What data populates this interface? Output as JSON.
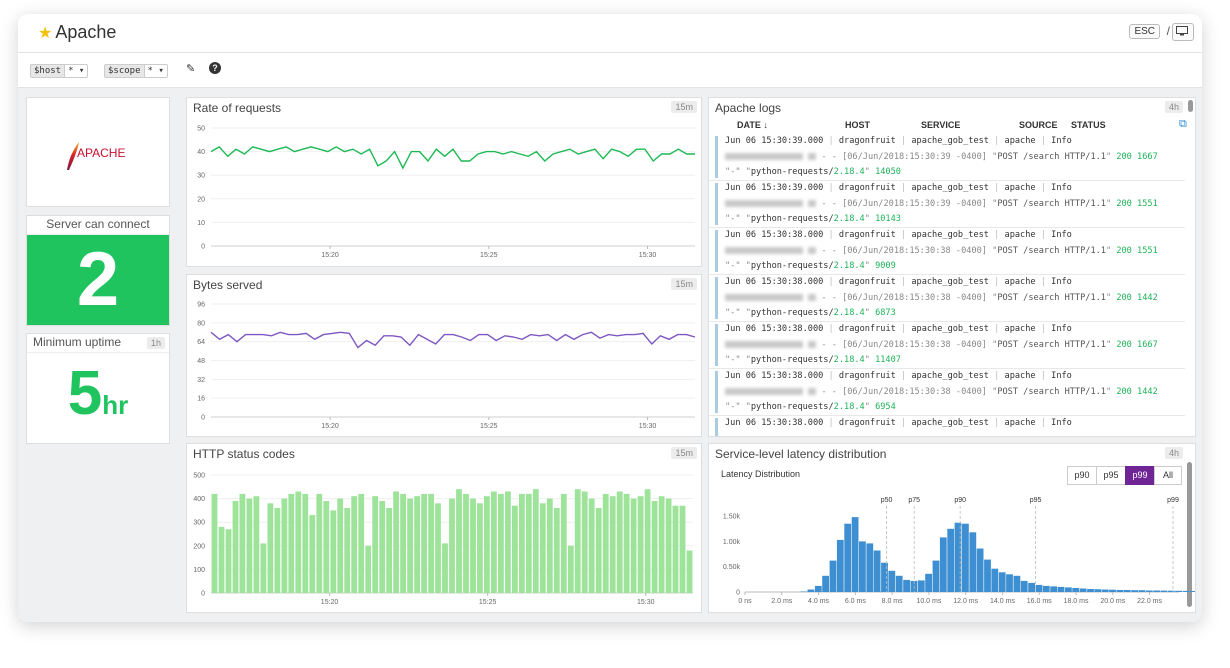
{
  "app": {
    "title": "Apache",
    "esc_label": "ESC",
    "slash": "/"
  },
  "variables": [
    {
      "name": "$host",
      "value": "*"
    },
    {
      "name": "$scope",
      "value": "*"
    }
  ],
  "widgets": {
    "logo": {
      "text": "APACHE"
    },
    "server_connect": {
      "title": "Server can connect",
      "value": "2",
      "bg_color": "#1fc45e"
    },
    "uptime": {
      "title": "Minimum uptime",
      "badge": "1h",
      "value": "5",
      "unit": "hr",
      "color": "#1fc45e"
    },
    "rate": {
      "title": "Rate of requests",
      "badge": "15m"
    },
    "bytes": {
      "title": "Bytes served",
      "badge": "15m"
    },
    "http": {
      "title": "HTTP status codes",
      "badge": "15m"
    },
    "logs": {
      "title": "Apache logs",
      "badge": "4h"
    },
    "latency": {
      "title": "Service-level latency distribution",
      "badge": "4h"
    }
  },
  "logs": {
    "columns": [
      "DATE ↓",
      "HOST",
      "SERVICE",
      "SOURCE",
      "STATUS"
    ],
    "rows": [
      {
        "date": "Jun 06 15:30:39.000",
        "host": "dragonfruit",
        "service": "apache_gob_test",
        "source": "apache",
        "status": "Info",
        "ts": "06/Jun/2018:15:30:39 -0400",
        "request": "POST /search HTTP/1.1",
        "code": "200",
        "size": "1667",
        "agent": "python-requests/",
        "ver": "2.18.4",
        "rt": "14050"
      },
      {
        "date": "Jun 06 15:30:39.000",
        "host": "dragonfruit",
        "service": "apache_gob_test",
        "source": "apache",
        "status": "Info",
        "ts": "06/Jun/2018:15:30:39 -0400",
        "request": "POST /search HTTP/1.1",
        "code": "200",
        "size": "1551",
        "agent": "python-requests/",
        "ver": "2.18.4",
        "rt": "10143"
      },
      {
        "date": "Jun 06 15:30:38.000",
        "host": "dragonfruit",
        "service": "apache_gob_test",
        "source": "apache",
        "status": "Info",
        "ts": "06/Jun/2018:15:30:38 -0400",
        "request": "POST /search HTTP/1.1",
        "code": "200",
        "size": "1551",
        "agent": "python-requests/",
        "ver": "2.18.4",
        "rt": "9009"
      },
      {
        "date": "Jun 06 15:30:38.000",
        "host": "dragonfruit",
        "service": "apache_gob_test",
        "source": "apache",
        "status": "Info",
        "ts": "06/Jun/2018:15:30:38 -0400",
        "request": "POST /search HTTP/1.1",
        "code": "200",
        "size": "1442",
        "agent": "python-requests/",
        "ver": "2.18.4",
        "rt": "6873"
      },
      {
        "date": "Jun 06 15:30:38.000",
        "host": "dragonfruit",
        "service": "apache_gob_test",
        "source": "apache",
        "status": "Info",
        "ts": "06/Jun/2018:15:30:38 -0400",
        "request": "POST /search HTTP/1.1",
        "code": "200",
        "size": "1667",
        "agent": "python-requests/",
        "ver": "2.18.4",
        "rt": "11407"
      },
      {
        "date": "Jun 06 15:30:38.000",
        "host": "dragonfruit",
        "service": "apache_gob_test",
        "source": "apache",
        "status": "Info",
        "ts": "06/Jun/2018:15:30:38 -0400",
        "request": "POST /search HTTP/1.1",
        "code": "200",
        "size": "1442",
        "agent": "python-requests/",
        "ver": "2.18.4",
        "rt": "6954"
      },
      {
        "date": "Jun 06 15:30:38.000",
        "host": "dragonfruit",
        "service": "apache_gob_test",
        "source": "apache",
        "status": "Info",
        "ts": "",
        "request": "",
        "code": "",
        "size": "",
        "agent": "",
        "ver": "",
        "rt": ""
      }
    ]
  },
  "latency_controls": {
    "subtitle": "Latency Distribution",
    "buttons": [
      "p90",
      "p95",
      "p99",
      "All"
    ],
    "active": "p99",
    "active_color": "#6f2596"
  },
  "chart_data": [
    {
      "type": "line",
      "color": "#1db954",
      "ylim": [
        0,
        50
      ],
      "yticks": [
        0,
        10,
        20,
        30,
        40,
        50
      ],
      "xticks": [
        "15:20",
        "15:25",
        "15:30"
      ],
      "values": [
        40,
        42,
        38,
        41,
        39,
        42,
        41,
        40,
        41,
        42,
        40,
        41,
        42,
        41,
        40,
        42,
        40,
        41,
        39,
        41,
        34,
        36,
        40,
        33,
        40,
        40,
        36,
        41,
        38,
        41,
        36,
        36,
        39,
        40,
        40,
        39,
        40,
        39,
        38,
        40,
        36,
        39,
        40,
        41,
        39,
        40,
        41,
        37,
        41,
        40,
        38,
        41,
        41,
        36,
        39,
        39,
        41,
        39,
        39
      ]
    },
    {
      "type": "line",
      "color": "#7e57c2",
      "ylim": [
        0,
        96
      ],
      "yticks": [
        0,
        16,
        32,
        48,
        64,
        80,
        96
      ],
      "xticks": [
        "15:20",
        "15:25",
        "15:30"
      ],
      "values": [
        72,
        66,
        70,
        64,
        70,
        70,
        70,
        69,
        72,
        70,
        70,
        71,
        66,
        70,
        71,
        72,
        71,
        59,
        65,
        61,
        69,
        69,
        68,
        61,
        70,
        66,
        62,
        70,
        70,
        68,
        65,
        70,
        70,
        65,
        69,
        68,
        66,
        70,
        69,
        70,
        65,
        70,
        66,
        70,
        72,
        67,
        70,
        69,
        70,
        70,
        71,
        62,
        69,
        66,
        70,
        70,
        68
      ]
    },
    {
      "type": "bar",
      "color": "#9de39a",
      "ylim": [
        0,
        500
      ],
      "yticks": [
        0,
        100,
        200,
        300,
        400,
        500
      ],
      "xticks": [
        "15:20",
        "15:25",
        "15:30"
      ],
      "values": [
        420,
        280,
        270,
        390,
        420,
        400,
        410,
        210,
        380,
        360,
        400,
        420,
        430,
        420,
        330,
        420,
        390,
        350,
        400,
        360,
        410,
        420,
        200,
        410,
        390,
        360,
        430,
        420,
        400,
        410,
        420,
        420,
        380,
        210,
        400,
        440,
        420,
        400,
        380,
        410,
        430,
        420,
        430,
        370,
        420,
        420,
        440,
        380,
        400,
        360,
        420,
        200,
        440,
        430,
        400,
        360,
        420,
        410,
        430,
        420,
        400,
        410,
        440,
        390,
        410,
        400,
        370,
        370,
        180
      ]
    },
    {
      "type": "bar",
      "color": "#3e8fd1",
      "ylim": [
        0,
        1700
      ],
      "yticks": [
        "0",
        "0.50k",
        "1.00k",
        "1.50k"
      ],
      "ytick_values": [
        0,
        500,
        1000,
        1500
      ],
      "xlabels": [
        "0 ns",
        "2.0 ms",
        "4.0 ms",
        "6.0 ms",
        "8.0 ms",
        "10.0 ms",
        "12.0 ms",
        "14.0 ms",
        "16.0 ms",
        "18.0 ms",
        "20.0 ms",
        "22.0 ms"
      ],
      "xrange_ms": [
        0,
        23.6
      ],
      "bin_start_ms": 3.0,
      "bin_width_ms": 0.4,
      "values": [
        10,
        50,
        120,
        320,
        620,
        1030,
        1350,
        1480,
        1000,
        960,
        820,
        580,
        420,
        320,
        240,
        220,
        230,
        360,
        620,
        1080,
        1250,
        1370,
        1350,
        1180,
        860,
        640,
        460,
        390,
        350,
        320,
        220,
        180,
        140,
        120,
        110,
        100,
        90,
        80,
        70,
        60,
        55,
        50,
        45,
        40,
        40,
        35,
        35,
        30,
        30,
        28,
        26,
        24,
        22,
        20,
        20,
        18,
        16,
        15,
        14,
        12
      ],
      "percentiles": [
        {
          "label": "p50",
          "ms": 7.7
        },
        {
          "label": "p75",
          "ms": 9.2
        },
        {
          "label": "p90",
          "ms": 11.7
        },
        {
          "label": "p95",
          "ms": 15.8
        },
        {
          "label": "p99",
          "ms": 23.7
        }
      ]
    }
  ]
}
